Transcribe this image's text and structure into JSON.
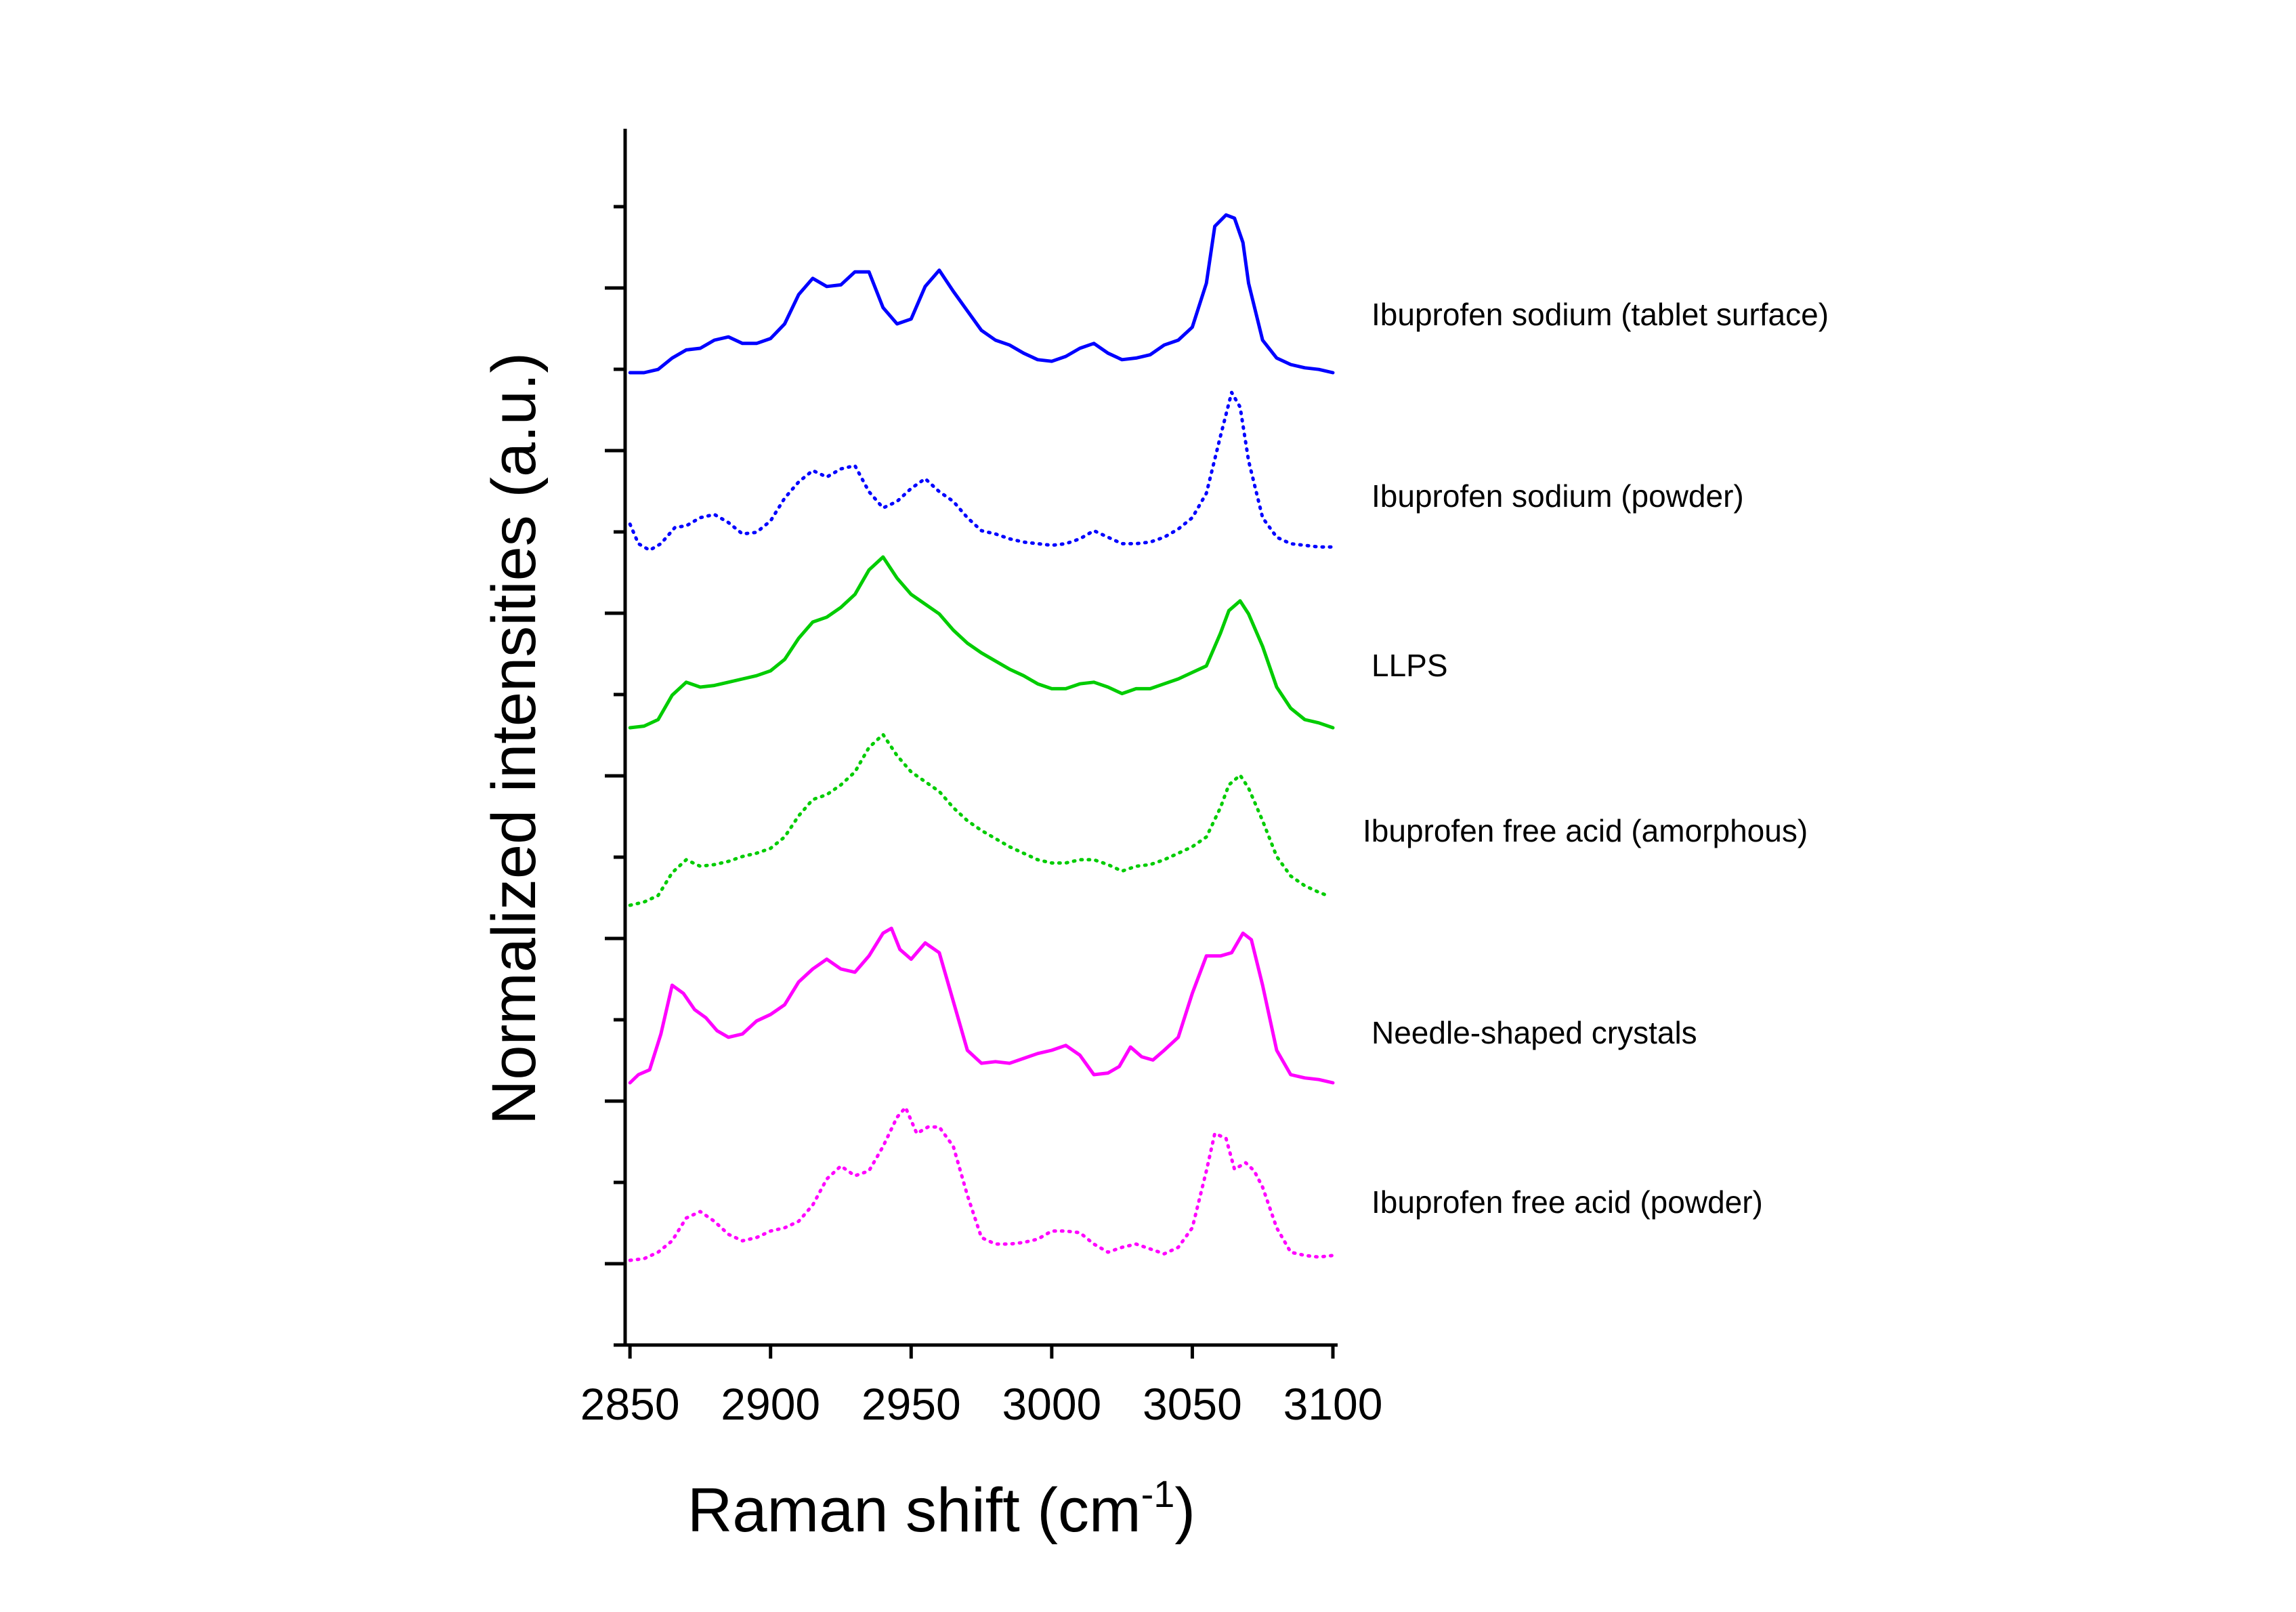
{
  "chart_data": {
    "type": "line",
    "xlabel": "Raman shift (cm",
    "xlabel_superscript": "-1",
    "xlabel_close": ")",
    "ylabel": "Normalized intensities (a.u.)",
    "xlim": [
      2849,
      3100
    ],
    "x_ticks": [
      "2850",
      "2900",
      "2950",
      "3000",
      "3050",
      "3100"
    ],
    "y_ticks": "unlabeled",
    "series": [
      {
        "name": "Ibuprofen sodium (tablet surface)",
        "color": "#0000ff",
        "style": "solid",
        "offset": 5,
        "x": [
          2850,
          2855,
          2860,
          2865,
          2870,
          2875,
          2880,
          2885,
          2890,
          2895,
          2900,
          2905,
          2910,
          2915,
          2920,
          2925,
          2930,
          2935,
          2940,
          2945,
          2950,
          2955,
          2960,
          2965,
          2970,
          2975,
          2980,
          2985,
          2990,
          2995,
          3000,
          3005,
          3010,
          3015,
          3020,
          3025,
          3030,
          3035,
          3040,
          3045,
          3050,
          3055,
          3058,
          3062,
          3065,
          3068,
          3070,
          3075,
          3080,
          3085,
          3090,
          3095,
          3100
        ],
        "y": [
          0.0,
          0.0,
          0.02,
          0.09,
          0.14,
          0.15,
          0.2,
          0.22,
          0.18,
          0.18,
          0.21,
          0.3,
          0.48,
          0.58,
          0.53,
          0.54,
          0.62,
          0.62,
          0.4,
          0.3,
          0.33,
          0.53,
          0.63,
          0.5,
          0.38,
          0.26,
          0.2,
          0.17,
          0.12,
          0.08,
          0.07,
          0.1,
          0.15,
          0.18,
          0.12,
          0.08,
          0.09,
          0.11,
          0.17,
          0.2,
          0.28,
          0.55,
          0.9,
          0.97,
          0.95,
          0.8,
          0.55,
          0.2,
          0.09,
          0.05,
          0.03,
          0.02,
          0.0
        ]
      },
      {
        "name": "Ibuprofen sodium (powder)",
        "color": "#0000ff",
        "style": "dotted",
        "offset": 4,
        "x": [
          2850,
          2853,
          2857,
          2861,
          2866,
          2870,
          2875,
          2880,
          2885,
          2890,
          2895,
          2900,
          2905,
          2910,
          2915,
          2920,
          2925,
          2930,
          2935,
          2940,
          2945,
          2950,
          2955,
          2960,
          2965,
          2970,
          2975,
          2980,
          2985,
          2990,
          2995,
          3000,
          3005,
          3010,
          3015,
          3020,
          3025,
          3030,
          3035,
          3040,
          3045,
          3050,
          3055,
          3060,
          3064,
          3067,
          3070,
          3075,
          3080,
          3085,
          3090,
          3095,
          3100
        ],
        "y": [
          0.16,
          0.04,
          0.0,
          0.04,
          0.14,
          0.15,
          0.2,
          0.22,
          0.17,
          0.1,
          0.11,
          0.18,
          0.32,
          0.42,
          0.49,
          0.45,
          0.5,
          0.52,
          0.36,
          0.26,
          0.3,
          0.38,
          0.44,
          0.36,
          0.3,
          0.2,
          0.12,
          0.1,
          0.07,
          0.05,
          0.04,
          0.03,
          0.04,
          0.07,
          0.12,
          0.08,
          0.04,
          0.04,
          0.05,
          0.08,
          0.13,
          0.2,
          0.35,
          0.7,
          0.97,
          0.88,
          0.55,
          0.2,
          0.08,
          0.04,
          0.03,
          0.02,
          0.02
        ]
      },
      {
        "name": "LLPS",
        "color": "#00cc00",
        "style": "solid",
        "offset": 3,
        "x": [
          2850,
          2855,
          2860,
          2865,
          2870,
          2875,
          2880,
          2885,
          2890,
          2895,
          2900,
          2905,
          2910,
          2915,
          2920,
          2925,
          2930,
          2935,
          2940,
          2945,
          2950,
          2955,
          2960,
          2965,
          2970,
          2975,
          2980,
          2985,
          2990,
          2995,
          3000,
          3005,
          3010,
          3015,
          3020,
          3025,
          3030,
          3035,
          3040,
          3045,
          3050,
          3055,
          3060,
          3063,
          3067,
          3070,
          3075,
          3080,
          3085,
          3090,
          3095,
          3100
        ],
        "y": [
          0.0,
          0.01,
          0.05,
          0.2,
          0.28,
          0.25,
          0.26,
          0.28,
          0.3,
          0.32,
          0.35,
          0.42,
          0.55,
          0.65,
          0.68,
          0.74,
          0.82,
          0.97,
          1.05,
          0.92,
          0.82,
          0.76,
          0.7,
          0.6,
          0.52,
          0.46,
          0.41,
          0.36,
          0.32,
          0.27,
          0.24,
          0.24,
          0.27,
          0.28,
          0.25,
          0.21,
          0.24,
          0.24,
          0.27,
          0.3,
          0.34,
          0.38,
          0.58,
          0.72,
          0.78,
          0.7,
          0.5,
          0.25,
          0.12,
          0.05,
          0.03,
          0.0
        ]
      },
      {
        "name": "Ibuprofen free acid (amorphous)",
        "color": "#00cc00",
        "style": "dotted",
        "offset": 2,
        "x": [
          2850,
          2855,
          2860,
          2865,
          2870,
          2875,
          2880,
          2885,
          2890,
          2895,
          2900,
          2905,
          2910,
          2915,
          2920,
          2925,
          2930,
          2935,
          2940,
          2945,
          2950,
          2955,
          2960,
          2965,
          2970,
          2975,
          2980,
          2985,
          2990,
          2995,
          3000,
          3005,
          3010,
          3015,
          3020,
          3025,
          3030,
          3035,
          3040,
          3045,
          3050,
          3055,
          3060,
          3063,
          3067,
          3070,
          3075,
          3080,
          3085,
          3090,
          3095,
          3098
        ],
        "y": [
          0.0,
          0.02,
          0.06,
          0.2,
          0.28,
          0.24,
          0.25,
          0.27,
          0.3,
          0.32,
          0.35,
          0.42,
          0.55,
          0.65,
          0.68,
          0.74,
          0.82,
          0.97,
          1.05,
          0.92,
          0.82,
          0.76,
          0.7,
          0.6,
          0.52,
          0.46,
          0.41,
          0.36,
          0.32,
          0.28,
          0.26,
          0.26,
          0.28,
          0.28,
          0.25,
          0.21,
          0.24,
          0.25,
          0.28,
          0.32,
          0.36,
          0.42,
          0.6,
          0.74,
          0.8,
          0.72,
          0.52,
          0.3,
          0.18,
          0.12,
          0.08,
          0.06
        ]
      },
      {
        "name": "Needle-shaped crystals",
        "color": "#ff00ff",
        "style": "solid",
        "offset": 1,
        "x": [
          2850,
          2853,
          2857,
          2861,
          2865,
          2869,
          2873,
          2877,
          2881,
          2885,
          2890,
          2895,
          2900,
          2905,
          2910,
          2915,
          2920,
          2925,
          2930,
          2935,
          2940,
          2943,
          2946,
          2950,
          2955,
          2960,
          2965,
          2970,
          2975,
          2980,
          2985,
          2990,
          2995,
          3000,
          3005,
          3010,
          3015,
          3020,
          3024,
          3028,
          3032,
          3036,
          3040,
          3045,
          3050,
          3055,
          3060,
          3064,
          3068,
          3071,
          3075,
          3080,
          3085,
          3090,
          3095,
          3100
        ],
        "y": [
          0.0,
          0.05,
          0.08,
          0.3,
          0.6,
          0.55,
          0.45,
          0.4,
          0.32,
          0.28,
          0.3,
          0.38,
          0.42,
          0.48,
          0.62,
          0.7,
          0.76,
          0.7,
          0.68,
          0.78,
          0.92,
          0.95,
          0.82,
          0.76,
          0.86,
          0.8,
          0.5,
          0.2,
          0.12,
          0.13,
          0.12,
          0.15,
          0.18,
          0.2,
          0.23,
          0.17,
          0.05,
          0.06,
          0.1,
          0.22,
          0.16,
          0.14,
          0.2,
          0.28,
          0.55,
          0.78,
          0.78,
          0.8,
          0.92,
          0.88,
          0.6,
          0.2,
          0.05,
          0.03,
          0.02,
          0.0
        ]
      },
      {
        "name": "Ibuprofen free acid (powder)",
        "color": "#ff00ff",
        "style": "dotted",
        "offset": 0,
        "x": [
          2850,
          2855,
          2860,
          2865,
          2870,
          2875,
          2880,
          2885,
          2890,
          2895,
          2900,
          2905,
          2910,
          2915,
          2920,
          2925,
          2930,
          2935,
          2940,
          2945,
          2948,
          2952,
          2956,
          2960,
          2965,
          2970,
          2975,
          2980,
          2985,
          2990,
          2995,
          3000,
          3005,
          3010,
          3015,
          3020,
          3025,
          3030,
          3035,
          3040,
          3045,
          3050,
          3055,
          3058,
          3062,
          3065,
          3069,
          3072,
          3075,
          3080,
          3085,
          3090,
          3095,
          3100
        ],
        "y": [
          0.0,
          0.01,
          0.05,
          0.12,
          0.26,
          0.3,
          0.24,
          0.16,
          0.12,
          0.14,
          0.18,
          0.2,
          0.24,
          0.34,
          0.5,
          0.58,
          0.52,
          0.55,
          0.7,
          0.88,
          0.94,
          0.78,
          0.82,
          0.82,
          0.7,
          0.4,
          0.14,
          0.1,
          0.1,
          0.11,
          0.13,
          0.18,
          0.18,
          0.17,
          0.1,
          0.05,
          0.08,
          0.1,
          0.07,
          0.04,
          0.08,
          0.2,
          0.55,
          0.78,
          0.75,
          0.56,
          0.6,
          0.55,
          0.45,
          0.2,
          0.05,
          0.03,
          0.02,
          0.03
        ]
      }
    ]
  }
}
